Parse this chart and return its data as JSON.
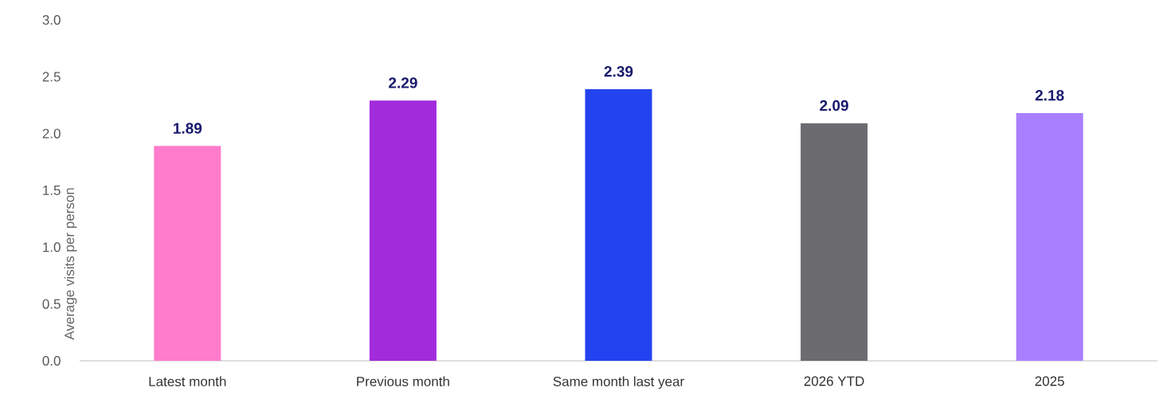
{
  "chart_data": {
    "type": "bar",
    "ylabel": "Average visits per person",
    "categories": [
      "Latest month",
      "Previous month",
      "Same month last year",
      "2026 YTD",
      "2025"
    ],
    "values": [
      1.89,
      2.29,
      2.39,
      2.09,
      2.18
    ],
    "colors": [
      "#ff7bcc",
      "#a22bdb",
      "#2343f0",
      "#6b6b70",
      "#a97fff"
    ],
    "ylim": [
      0,
      3.0
    ],
    "yticks": [
      {
        "value": 0,
        "label": "0.0"
      },
      {
        "value": 0.5,
        "label": "0.5"
      },
      {
        "value": 1.0,
        "label": "1.0"
      },
      {
        "value": 1.5,
        "label": "1.5"
      },
      {
        "value": 2.0,
        "label": "2.0"
      },
      {
        "value": 2.5,
        "label": "2.5"
      },
      {
        "value": 3.0,
        "label": "3.0"
      }
    ],
    "data_labels": true,
    "grid": false
  }
}
